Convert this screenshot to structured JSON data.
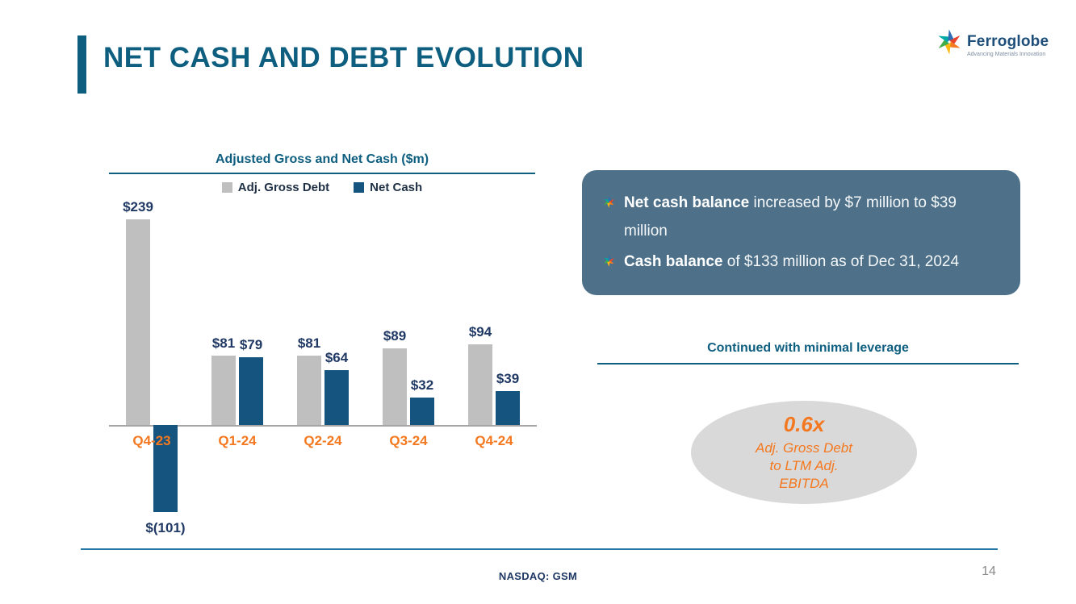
{
  "slide": {
    "title": "NET CASH AND DEBT EVOLUTION",
    "footer": "NASDAQ: GSM",
    "page_number": "14"
  },
  "logo": {
    "brand": "Ferroglobe",
    "tagline": "Advancing Materials Innovation"
  },
  "chart": {
    "title": "Adjusted Gross and Net Cash ($m)"
  },
  "chart_data": {
    "type": "bar",
    "title": "Adjusted Gross and Net Cash ($m)",
    "categories": [
      "Q4-23",
      "Q1-24",
      "Q2-24",
      "Q3-24",
      "Q4-24"
    ],
    "series": [
      {
        "name": "Adj. Gross Debt",
        "values": [
          239,
          81,
          81,
          89,
          94
        ],
        "labels": [
          "$239",
          "$81",
          "$81",
          "$89",
          "$94"
        ],
        "color": "#bfbfbf"
      },
      {
        "name": "Net Cash",
        "values": [
          -101,
          79,
          64,
          32,
          39
        ],
        "labels": [
          "$(101)",
          "$79",
          "$64",
          "$32",
          "$39"
        ],
        "color": "#15547e"
      }
    ],
    "xlabel": "",
    "ylabel": "",
    "ylim": [
      -110,
      250
    ],
    "grid": false,
    "legend_position": "top",
    "category_label_color": "#f4781f",
    "value_label_color": "#1f3864"
  },
  "callout": {
    "bullets": [
      {
        "bold": "Net cash balance",
        "rest": " increased by $7 million to $39 million"
      },
      {
        "bold": "Cash balance",
        "rest": " of $133 million as of Dec 31, 2024"
      }
    ],
    "background": "#4e7189"
  },
  "leverage": {
    "heading": "Continued with minimal leverage",
    "value": "0.6x",
    "lines": [
      "Adj. Gross Debt",
      "to LTM Adj.",
      "EBITDA"
    ],
    "ellipse_color": "#d9d9d9",
    "text_color": "#f4781f"
  },
  "colors": {
    "accent_blue": "#0e5e80",
    "orange": "#f4781f",
    "bar_gray": "#bfbfbf",
    "bar_blue": "#15547e"
  }
}
